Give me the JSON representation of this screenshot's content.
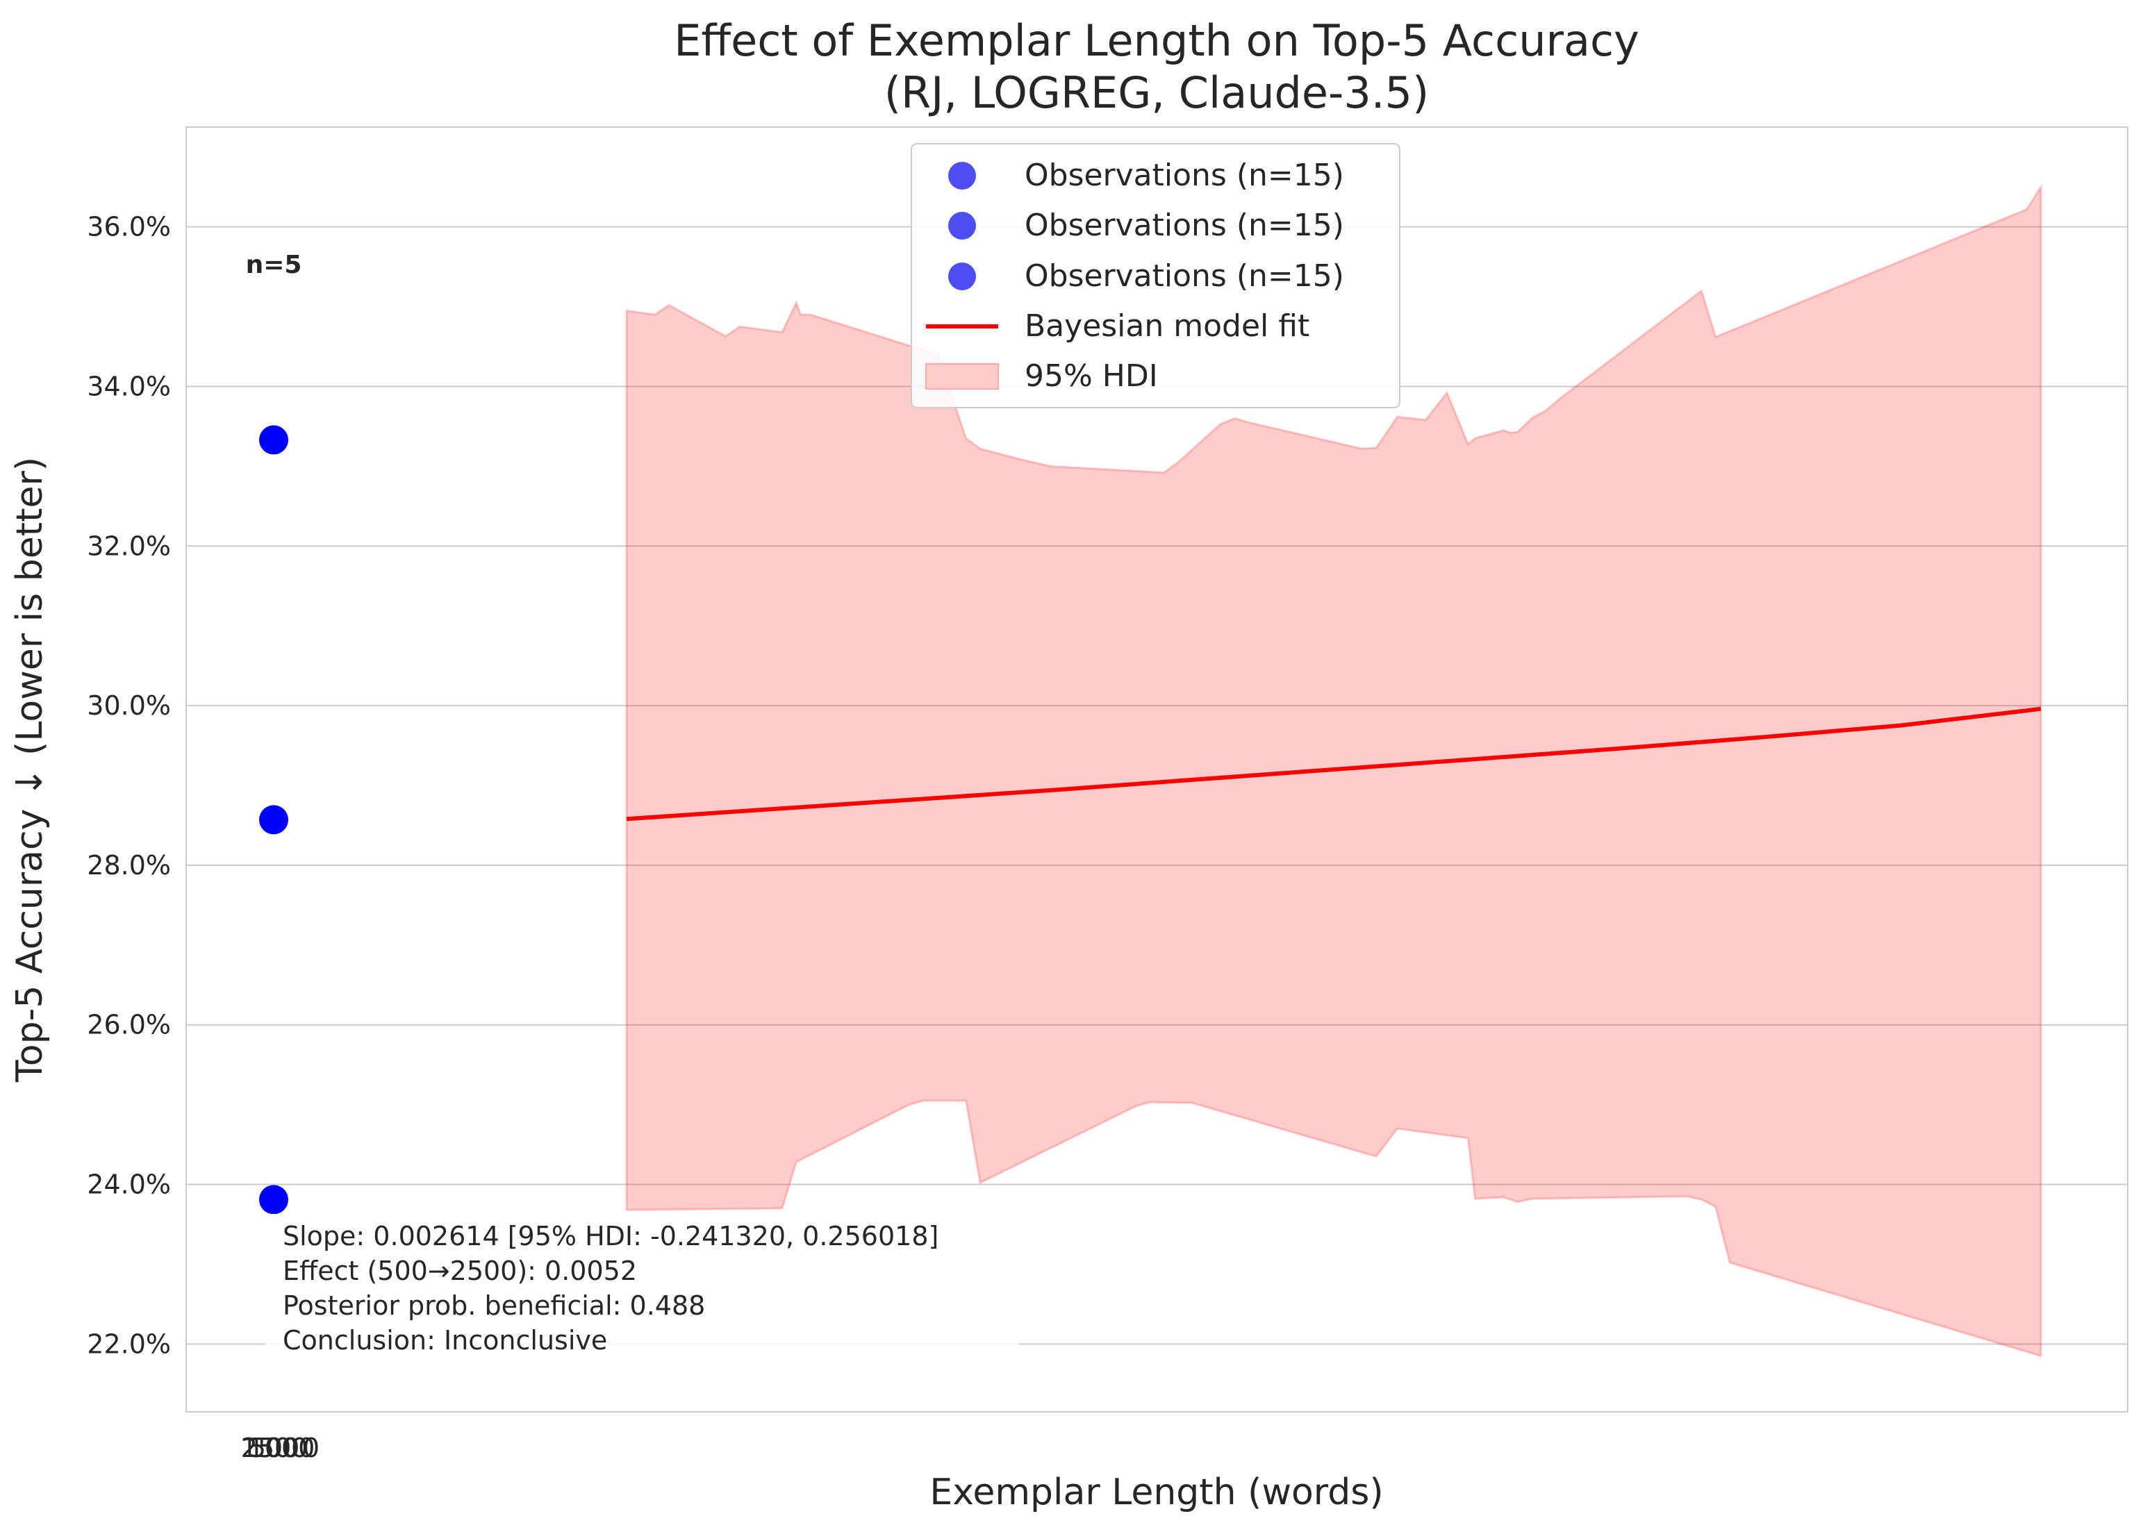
{
  "chart_data": {
    "type": "scatter",
    "title": "Effect of Exemplar Length on Top-5 Accuracy",
    "subtitle": "(RJ, LOGREG, Claude-3.5)",
    "xlabel": "Exemplar Length (words)",
    "ylabel": "Top-5 Accuracy ↓ (Lower is better)",
    "ylim": [
      21.15,
      37.25
    ],
    "y_ticks": [
      22.0,
      24.0,
      26.0,
      28.0,
      30.0,
      32.0,
      34.0,
      36.0
    ],
    "y_tick_labels": [
      "22.0%",
      "24.0%",
      "26.0%",
      "28.0%",
      "30.0%",
      "32.0%",
      "34.0%",
      "36.0%"
    ],
    "x_tick_labels_overlapping": [
      "2500",
      "1500",
      "500",
      "1000",
      "0"
    ],
    "grid": true,
    "legend_position": "top-center",
    "legend": [
      {
        "label": "Observations (n=15)",
        "kind": "marker",
        "color": "#4d4df2"
      },
      {
        "label": "Observations (n=15)",
        "kind": "marker",
        "color": "#4d4df2"
      },
      {
        "label": "Observations (n=15)",
        "kind": "marker",
        "color": "#4d4df2"
      },
      {
        "label": "Bayesian model fit",
        "kind": "line",
        "color": "#ff0000"
      },
      {
        "label": "95% HDI",
        "kind": "patch",
        "color": "#ffcccc"
      }
    ],
    "count_label": "n=5",
    "observations": [
      {
        "y": 33.33
      },
      {
        "y": 28.57
      },
      {
        "y": 23.81
      }
    ],
    "fit_line": {
      "t": [
        0.0,
        0.1,
        0.2,
        0.3,
        0.4,
        0.5,
        0.6,
        0.7,
        0.8,
        0.9,
        1.0
      ],
      "y": [
        28.58,
        28.7,
        28.82,
        28.94,
        29.07,
        29.2,
        29.33,
        29.46,
        29.6,
        29.75,
        29.96
      ]
    },
    "hdi": {
      "upper_t": [
        0.0,
        0.02,
        0.03,
        0.07,
        0.08,
        0.11,
        0.12,
        0.123,
        0.13,
        0.22,
        0.24,
        0.25,
        0.28,
        0.3,
        0.38,
        0.39,
        0.42,
        0.43,
        0.44,
        0.52,
        0.53,
        0.545,
        0.565,
        0.58,
        0.595,
        0.6,
        0.62,
        0.625,
        0.63,
        0.64,
        0.65,
        0.66,
        0.76,
        0.77,
        0.99,
        1.0
      ],
      "upper_y": [
        34.95,
        34.9,
        35.02,
        34.63,
        34.75,
        34.68,
        35.05,
        34.9,
        34.9,
        34.4,
        33.35,
        33.22,
        33.08,
        33.0,
        32.92,
        33.05,
        33.53,
        33.6,
        33.55,
        33.22,
        33.23,
        33.62,
        33.58,
        33.92,
        33.28,
        33.35,
        33.45,
        33.42,
        33.43,
        33.6,
        33.7,
        33.85,
        35.2,
        34.62,
        36.22,
        36.5
      ],
      "lower_t": [
        0.0,
        0.11,
        0.12,
        0.2,
        0.21,
        0.24,
        0.25,
        0.36,
        0.37,
        0.4,
        0.53,
        0.545,
        0.595,
        0.6,
        0.62,
        0.63,
        0.64,
        0.75,
        0.76,
        0.77,
        0.78,
        1.0
      ],
      "lower_y": [
        23.68,
        23.7,
        24.28,
        25.0,
        25.05,
        25.05,
        24.02,
        24.98,
        25.03,
        25.02,
        24.35,
        24.7,
        24.58,
        23.82,
        23.84,
        23.78,
        23.82,
        23.85,
        23.81,
        23.72,
        23.02,
        21.85
      ]
    },
    "annotation": [
      "Slope: 0.002614 [95% HDI: -0.241320, 0.256018]",
      "Effect (500→2500): 0.0052",
      "Posterior prob. beneficial: 0.488",
      "Conclusion: Inconclusive"
    ]
  }
}
